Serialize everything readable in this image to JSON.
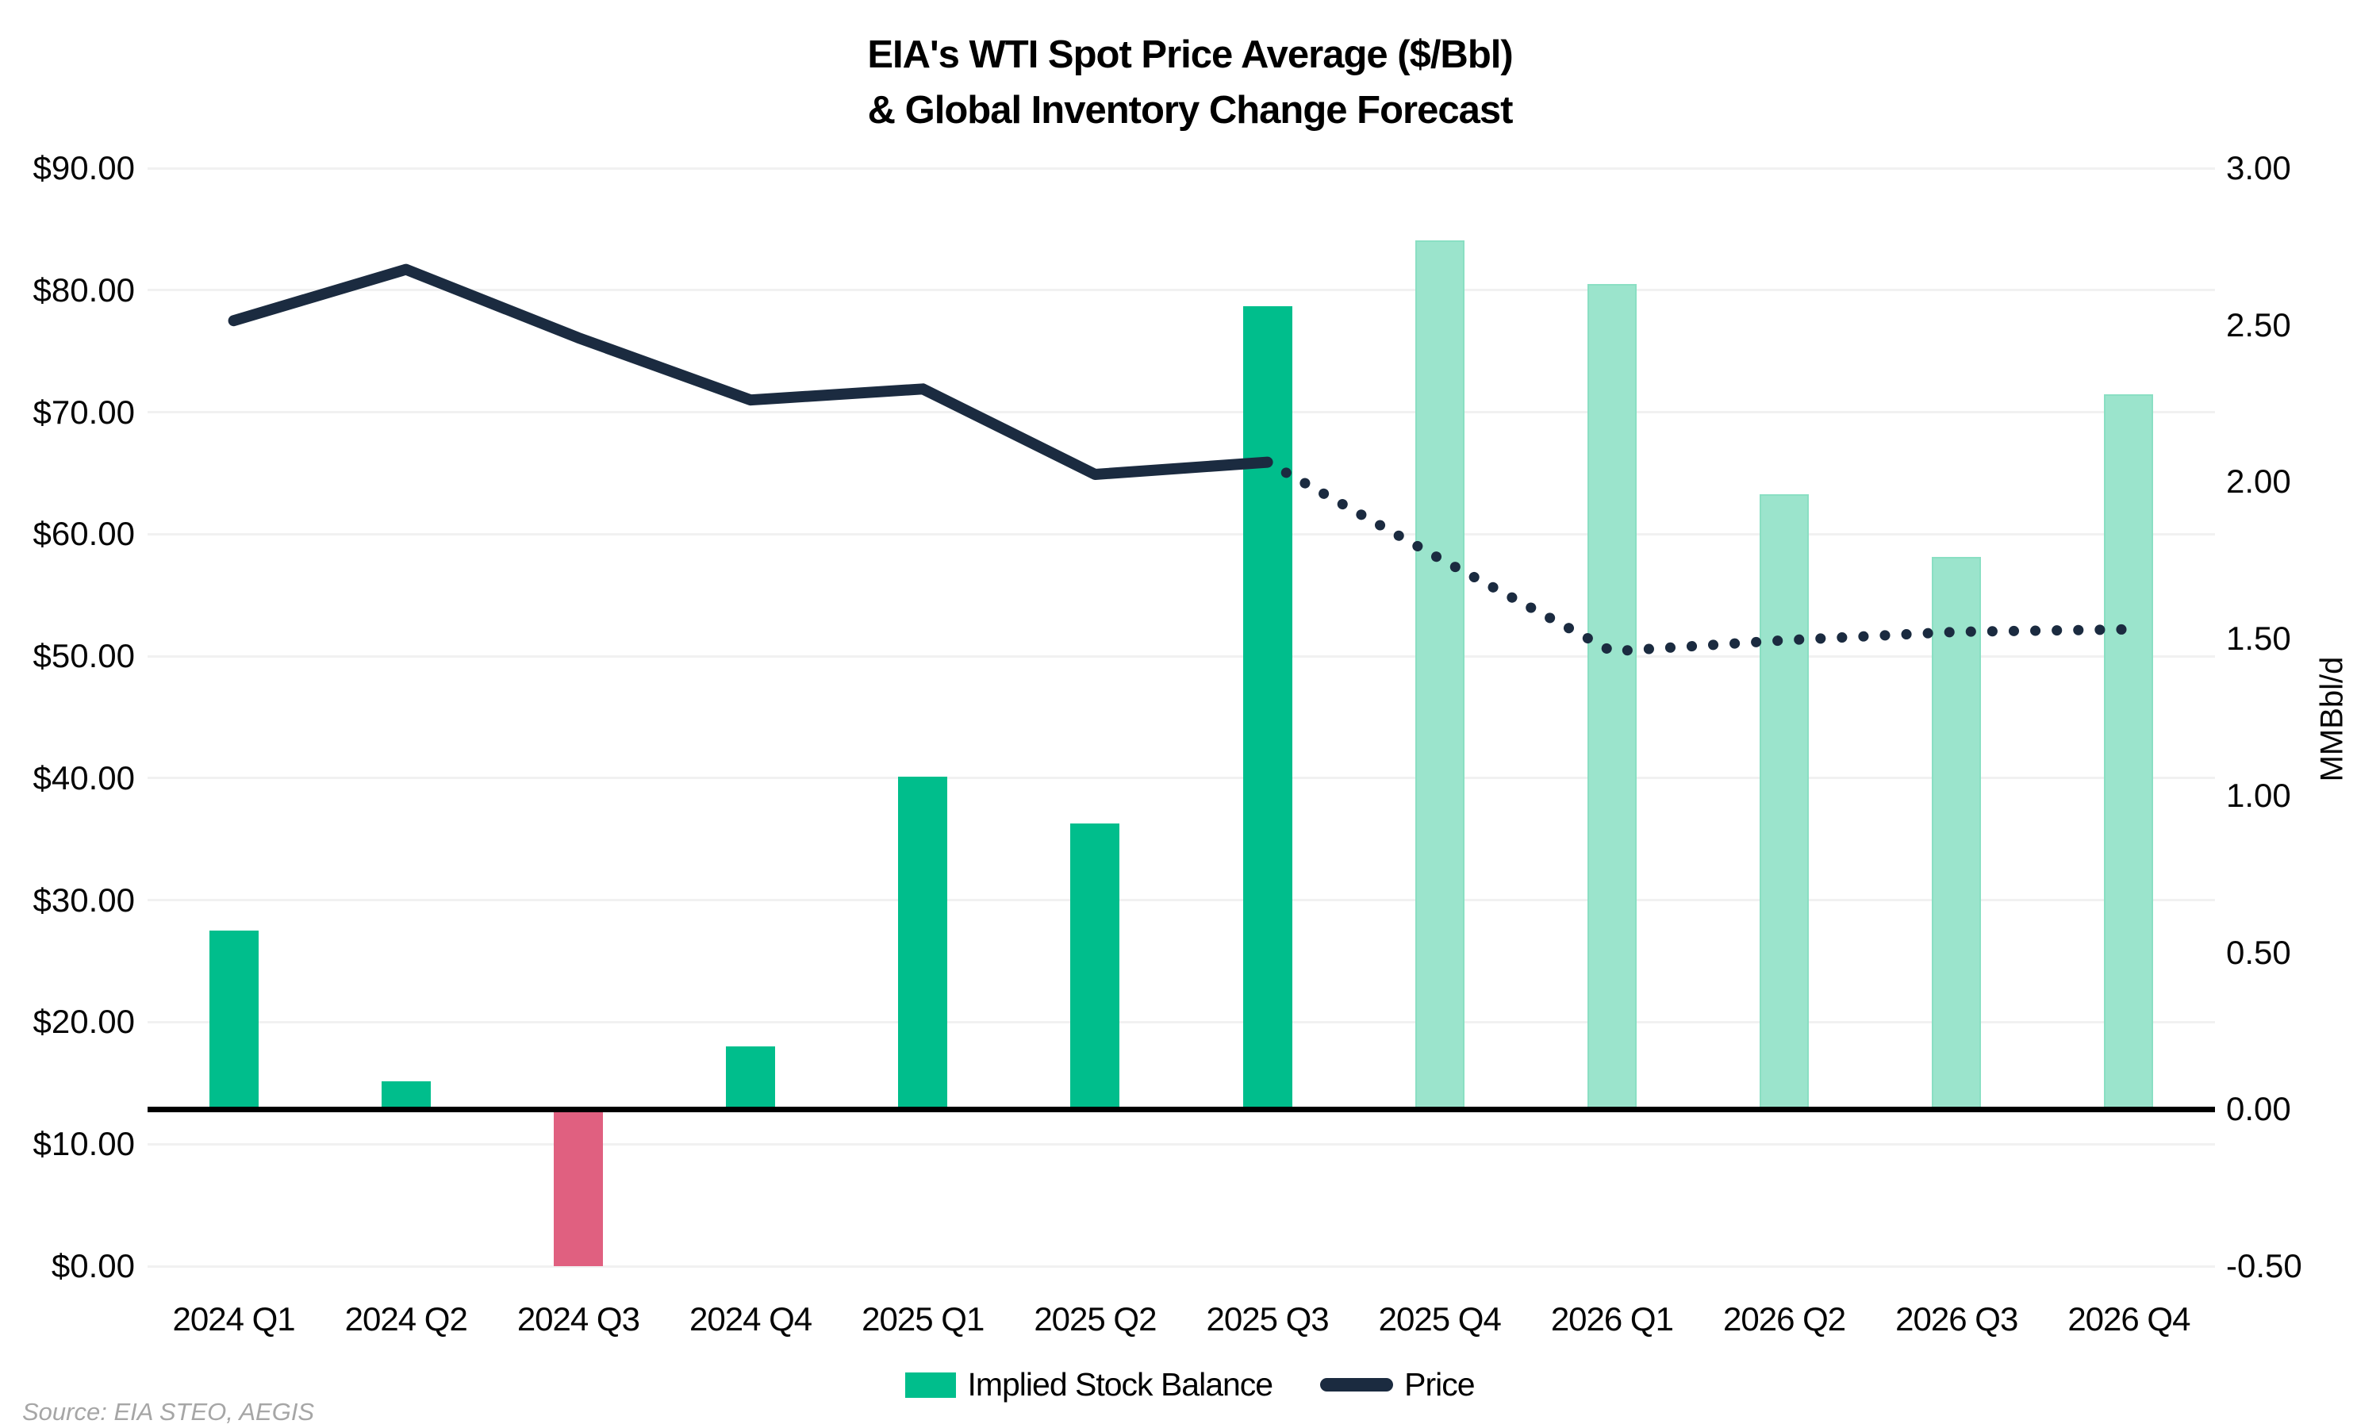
{
  "title": {
    "line1": "EIA's WTI Spot Price Average ($/Bbl)",
    "line2": "& Global Inventory Change Forecast"
  },
  "source": "Source: EIA STEO, AEGIS",
  "legend": {
    "items": [
      {
        "label": "Implied Stock Balance",
        "swatch": "bar",
        "color": "#00BE8C"
      },
      {
        "label": "Price",
        "swatch": "line",
        "color": "#1B2B40"
      }
    ]
  },
  "chart_data": {
    "type": "combo-bar-line",
    "categories": [
      "2024 Q1",
      "2024 Q2",
      "2024 Q3",
      "2024 Q4",
      "2025 Q1",
      "2025 Q2",
      "2025 Q3",
      "2025 Q4",
      "2026 Q1",
      "2026 Q2",
      "2026 Q3",
      "2026 Q4"
    ],
    "series": [
      {
        "name": "Implied Stock Balance",
        "type": "bar",
        "axis": "right",
        "unit": "MMBbl/d",
        "values": [
          0.57,
          0.09,
          -0.5,
          0.2,
          1.06,
          0.91,
          2.56,
          2.77,
          2.63,
          1.96,
          1.76,
          2.28
        ],
        "styles": [
          "solid",
          "solid",
          "negative",
          "solid",
          "solid",
          "solid",
          "solid",
          "light",
          "light",
          "light",
          "light",
          "light"
        ]
      },
      {
        "name": "Price",
        "type": "line",
        "axis": "left",
        "unit": "$/Bbl",
        "values": [
          77.5,
          81.7,
          76.1,
          71.0,
          71.9,
          64.9,
          65.9,
          58.0,
          50.4,
          51.3,
          52.0,
          52.2
        ],
        "solid_through_index": 6,
        "dotted_after": true
      }
    ],
    "left_axis": {
      "min": 0,
      "max": 90,
      "tick_labels": [
        "$90.00",
        "$80.00",
        "$70.00",
        "$60.00",
        "$50.00",
        "$40.00",
        "$30.00",
        "$20.00",
        "$10.00",
        "$0.00"
      ]
    },
    "right_axis": {
      "min": -0.5,
      "max": 3.0,
      "title": "MMBbl/d",
      "tick_labels": [
        "3.00",
        "2.50",
        "2.00",
        "1.50",
        "1.00",
        "0.50",
        "0.00",
        "-0.50"
      ]
    },
    "grid": true,
    "legend_position": "bottom",
    "colors": {
      "bar_solid": "#00BE8C",
      "bar_light": "#9BE4CC",
      "bar_light_border": "#8ADFC3",
      "bar_negative": "#E06080",
      "price_line": "#1B2B40",
      "gridline": "#F1F1F1",
      "zero_line": "#000000",
      "source_text": "#A6A6A6"
    }
  }
}
